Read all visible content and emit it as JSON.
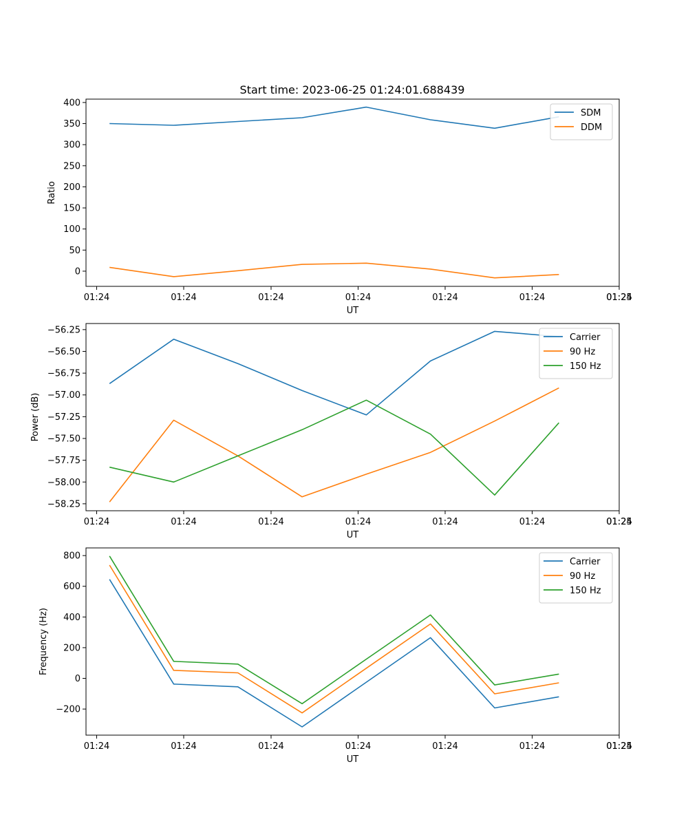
{
  "colors": {
    "c0": "#1f77b4",
    "c1": "#ff7f0e",
    "c2": "#2ca02c"
  },
  "chart_data": [
    {
      "type": "line",
      "title": "Start time: 2023-06-25 01:24:01.688439",
      "xlabel": "UT",
      "ylabel": "Ratio",
      "x_ticks": [
        "01:24",
        "01:24",
        "01:24",
        "01:24",
        "01:24",
        "01:24",
        "01:24",
        "01:25"
      ],
      "x": [
        1,
        2,
        3,
        4,
        5,
        6,
        7,
        8
      ],
      "ylim": [
        -36,
        408
      ],
      "y_ticks": [
        0,
        50,
        100,
        150,
        200,
        250,
        300,
        350,
        400
      ],
      "y_tick_labels": [
        "0",
        "50",
        "100",
        "150",
        "200",
        "250",
        "300",
        "350",
        "400"
      ],
      "legend_position": "top-right",
      "series": [
        {
          "name": "SDM",
          "color": "#1f77b4",
          "values": [
            350,
            346,
            355,
            364,
            389,
            359,
            339,
            366
          ]
        },
        {
          "name": "DDM",
          "color": "#ff7f0e",
          "values": [
            9,
            -13,
            1,
            16,
            19,
            5,
            -16,
            -8
          ]
        }
      ]
    },
    {
      "type": "line",
      "xlabel": "UT",
      "ylabel": "Power (dB)",
      "x_ticks": [
        "01:24",
        "01:24",
        "01:24",
        "01:24",
        "01:24",
        "01:24",
        "01:24",
        "01:25"
      ],
      "x": [
        1,
        2,
        3,
        4,
        5,
        6,
        7,
        8
      ],
      "ylim": [
        -58.33,
        -56.18
      ],
      "y_ticks": [
        -58.25,
        -58.0,
        -57.75,
        -57.5,
        -57.25,
        -57.0,
        -56.75,
        -56.5,
        -56.25
      ],
      "y_tick_labels": [
        "−58.25",
        "−58.00",
        "−57.75",
        "−57.50",
        "−57.25",
        "−57.00",
        "−56.75",
        "−56.50",
        "−56.25"
      ],
      "legend_position": "top-right",
      "series": [
        {
          "name": "Carrier",
          "color": "#1f77b4",
          "values": [
            -56.87,
            -56.36,
            -56.64,
            -56.95,
            -57.23,
            -56.61,
            -56.27,
            -56.33
          ]
        },
        {
          "name": "90 Hz",
          "color": "#ff7f0e",
          "values": [
            -58.23,
            -57.29,
            -57.7,
            -58.17,
            -57.91,
            -57.66,
            -57.3,
            -56.92
          ]
        },
        {
          "name": "150 Hz",
          "color": "#2ca02c",
          "values": [
            -57.83,
            -58.0,
            -57.7,
            -57.4,
            -57.06,
            -57.45,
            -58.15,
            -57.32
          ]
        }
      ]
    },
    {
      "type": "line",
      "xlabel": "UT",
      "ylabel": "Frequency (Hz)",
      "x_ticks": [
        "01:24",
        "01:24",
        "01:24",
        "01:24",
        "01:24",
        "01:24",
        "01:24",
        "01:25"
      ],
      "x": [
        1,
        2,
        3,
        4,
        5,
        6,
        7,
        8
      ],
      "ylim": [
        -370,
        850
      ],
      "y_ticks": [
        -200,
        0,
        200,
        400,
        600,
        800
      ],
      "y_tick_labels": [
        "−200",
        "0",
        "200",
        "400",
        "600",
        "800"
      ],
      "legend_position": "top-right",
      "series": [
        {
          "name": "Carrier",
          "color": "#1f77b4",
          "values": [
            645,
            -37,
            -55,
            -316,
            -25,
            265,
            -193,
            -120
          ]
        },
        {
          "name": "90 Hz",
          "color": "#ff7f0e",
          "values": [
            738,
            52,
            36,
            -225,
            66,
            355,
            -101,
            -29
          ]
        },
        {
          "name": "150 Hz",
          "color": "#2ca02c",
          "values": [
            797,
            111,
            93,
            -165,
            125,
            413,
            -43,
            28
          ]
        }
      ]
    }
  ]
}
